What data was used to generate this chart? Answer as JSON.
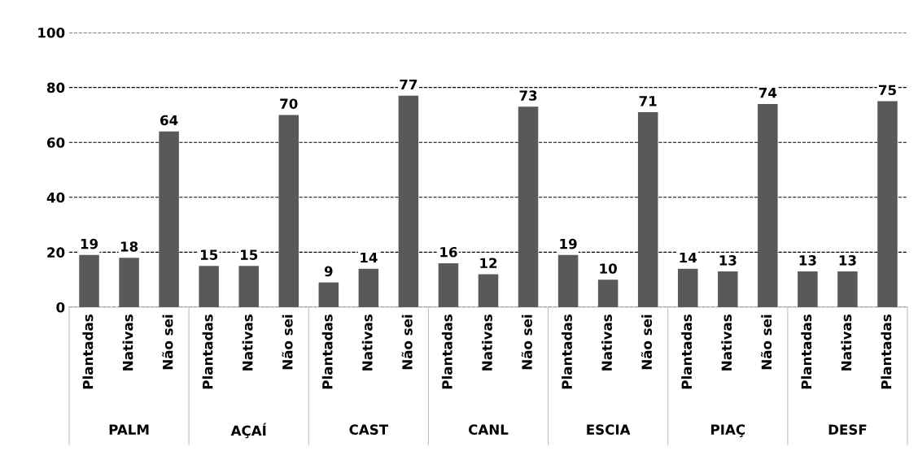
{
  "chart_data": {
    "type": "bar",
    "categories": [
      "Plantadas",
      "Nativas",
      "Não sei",
      "Plantadas",
      "Nativas",
      "Não sei",
      "Plantadas",
      "Nativas",
      "Não sei",
      "Plantadas",
      "Nativas",
      "Não sei",
      "Plantadas",
      "Nativas",
      "Não sei",
      "Plantadas",
      "Nativas",
      "Não sei",
      "Plantadas",
      "Nativas",
      "Plantadas"
    ],
    "values": [
      19,
      18,
      64,
      15,
      15,
      70,
      9,
      14,
      77,
      16,
      12,
      73,
      19,
      10,
      71,
      14,
      13,
      74,
      13,
      13,
      75
    ],
    "color": "#595959",
    "annotations": [
      "PALM",
      "AÇAÍ",
      "CAST",
      "CANL",
      "ESCIA",
      "PIAÇ",
      "DESF"
    ],
    "ylim": [
      0,
      100
    ],
    "yticks": [
      0,
      20,
      40,
      60,
      80,
      100
    ],
    "grid": "y",
    "data_labels": true,
    "legend": false
  }
}
